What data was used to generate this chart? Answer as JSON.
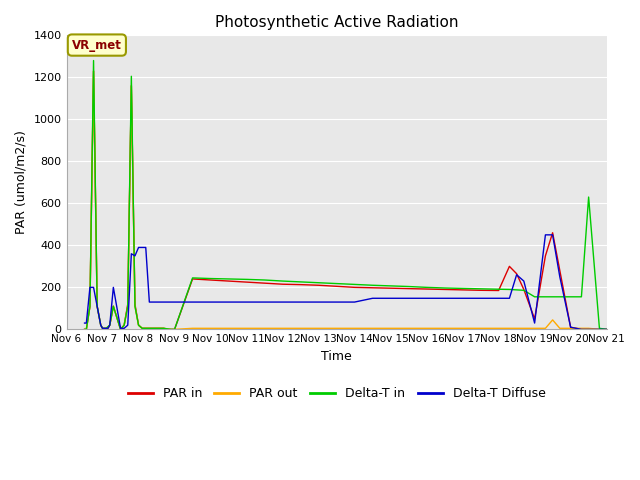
{
  "title": "Photosynthetic Active Radiation",
  "xlabel": "Time",
  "ylabel": "PAR (umol/m2/s)",
  "ylim": [
    0,
    1400
  ],
  "xlim": [
    0,
    15
  ],
  "label_box": "VR_met",
  "xtick_labels": [
    "Nov 6",
    "Nov 7",
    "Nov 8",
    "Nov 9",
    "Nov 10",
    "Nov 11",
    "Nov 12",
    "Nov 13",
    "Nov 14",
    "Nov 15",
    "Nov 16",
    "Nov 17",
    "Nov 18",
    "Nov 19",
    "Nov 20",
    "Nov 21"
  ],
  "ytick_vals": [
    0,
    200,
    400,
    600,
    800,
    1000,
    1200,
    1400
  ],
  "series": {
    "PAR in": {
      "color": "#dd0000",
      "x": [
        0.5,
        0.55,
        0.65,
        0.75,
        0.85,
        0.95,
        1.0,
        1.05,
        1.1,
        1.15,
        1.2,
        1.3,
        1.5,
        1.6,
        1.7,
        1.8,
        1.9,
        2.0,
        2.1,
        2.2,
        2.3,
        2.35,
        2.4,
        2.5,
        2.55,
        2.6,
        2.65,
        2.7,
        2.8,
        2.9,
        3.0,
        3.5,
        4.0,
        4.5,
        5.0,
        5.5,
        6.0,
        6.5,
        7.0,
        7.5,
        8.0,
        8.5,
        9.0,
        9.5,
        10.0,
        10.5,
        11.0,
        11.5,
        12.0,
        12.3,
        12.5,
        12.7,
        13.0,
        13.3,
        13.5,
        13.7,
        14.0,
        14.3,
        14.5,
        14.8,
        15.0
      ],
      "y": [
        0,
        0,
        110,
        1230,
        110,
        20,
        5,
        5,
        5,
        5,
        20,
        110,
        0,
        20,
        120,
        1160,
        120,
        20,
        5,
        5,
        5,
        5,
        5,
        5,
        5,
        5,
        5,
        5,
        0,
        0,
        0,
        240,
        235,
        230,
        225,
        220,
        215,
        213,
        210,
        205,
        200,
        198,
        196,
        194,
        192,
        190,
        188,
        186,
        185,
        300,
        265,
        190,
        50,
        350,
        460,
        280,
        10,
        0,
        0,
        0,
        0
      ]
    },
    "PAR out": {
      "color": "#ffaa00",
      "x": [
        0.5,
        0.55,
        0.65,
        0.75,
        0.85,
        0.95,
        1.0,
        1.1,
        1.2,
        1.3,
        1.5,
        1.6,
        1.7,
        1.8,
        1.9,
        2.0,
        2.1,
        2.3,
        2.5,
        2.7,
        2.9,
        3.0,
        3.5,
        4.0,
        4.5,
        5.0,
        5.5,
        6.0,
        6.5,
        7.0,
        7.5,
        8.0,
        8.5,
        9.0,
        9.5,
        10.0,
        10.5,
        11.0,
        11.5,
        12.0,
        12.3,
        12.5,
        12.7,
        13.0,
        13.3,
        13.5,
        13.7,
        14.0,
        14.3,
        14.5,
        14.8,
        15.0
      ],
      "y": [
        0,
        0,
        110,
        1230,
        110,
        20,
        5,
        5,
        20,
        110,
        0,
        20,
        110,
        1160,
        110,
        20,
        5,
        5,
        5,
        5,
        0,
        0,
        5,
        5,
        5,
        5,
        5,
        5,
        5,
        5,
        5,
        5,
        5,
        5,
        5,
        5,
        5,
        5,
        5,
        5,
        5,
        5,
        5,
        5,
        5,
        45,
        5,
        5,
        5,
        5,
        0,
        0
      ]
    },
    "Delta-T in": {
      "color": "#00cc00",
      "x": [
        0.5,
        0.55,
        0.65,
        0.75,
        0.85,
        0.95,
        1.0,
        1.1,
        1.2,
        1.3,
        1.5,
        1.6,
        1.7,
        1.8,
        1.9,
        2.0,
        2.1,
        2.3,
        2.5,
        2.7,
        2.9,
        3.0,
        3.5,
        4.0,
        4.5,
        5.0,
        5.5,
        6.0,
        6.5,
        7.0,
        7.5,
        8.0,
        8.5,
        9.0,
        9.5,
        10.0,
        10.5,
        11.0,
        11.5,
        12.0,
        12.3,
        12.5,
        12.7,
        13.0,
        13.3,
        13.5,
        13.7,
        14.0,
        14.3,
        14.5,
        14.8,
        15.0
      ],
      "y": [
        0,
        0,
        110,
        1280,
        110,
        20,
        5,
        5,
        20,
        110,
        0,
        20,
        110,
        1205,
        110,
        20,
        5,
        5,
        5,
        5,
        0,
        0,
        245,
        242,
        240,
        238,
        235,
        230,
        226,
        222,
        218,
        214,
        210,
        207,
        204,
        200,
        197,
        195,
        193,
        191,
        190,
        188,
        186,
        155,
        155,
        155,
        155,
        155,
        155,
        630,
        5,
        0
      ]
    },
    "Delta-T Diffuse": {
      "color": "#0000cc",
      "x": [
        0.5,
        0.55,
        0.65,
        0.75,
        0.85,
        0.95,
        1.0,
        1.05,
        1.1,
        1.15,
        1.2,
        1.3,
        1.5,
        1.6,
        1.7,
        1.8,
        1.9,
        2.0,
        2.05,
        2.1,
        2.2,
        2.3,
        2.35,
        2.4,
        2.5,
        2.7,
        2.9,
        3.0,
        3.5,
        4.0,
        4.5,
        5.0,
        5.5,
        6.0,
        6.5,
        7.0,
        7.5,
        8.0,
        8.5,
        9.0,
        9.5,
        10.0,
        10.5,
        11.0,
        11.5,
        12.0,
        12.3,
        12.5,
        12.7,
        13.0,
        13.3,
        13.5,
        13.7,
        14.0,
        14.3,
        14.5,
        14.8,
        15.0
      ],
      "y": [
        30,
        30,
        200,
        200,
        110,
        20,
        5,
        5,
        5,
        5,
        20,
        200,
        5,
        5,
        20,
        360,
        350,
        390,
        390,
        390,
        390,
        130,
        130,
        130,
        130,
        130,
        130,
        130,
        130,
        130,
        130,
        130,
        130,
        130,
        130,
        130,
        130,
        130,
        148,
        148,
        148,
        148,
        148,
        148,
        148,
        148,
        148,
        260,
        230,
        30,
        450,
        450,
        250,
        10,
        0,
        0,
        0,
        0
      ]
    }
  },
  "fig_bg": "#ffffff",
  "plot_bg": "#e8e8e8",
  "grid_color": "#ffffff",
  "spine_color": "#aaaaaa"
}
